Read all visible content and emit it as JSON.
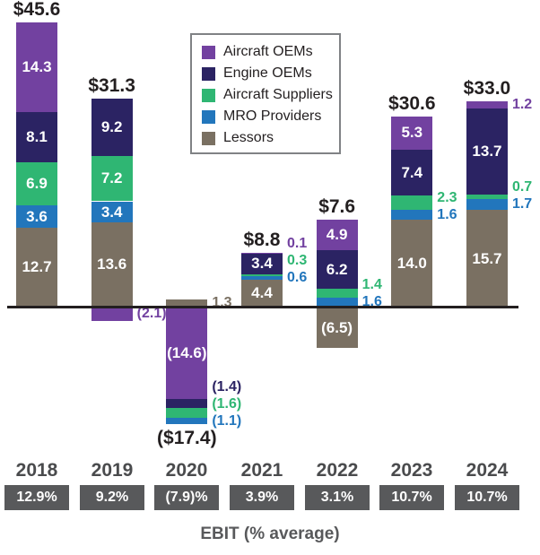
{
  "chart_data": {
    "type": "bar",
    "stacked": true,
    "categories": [
      "2018",
      "2019",
      "2020",
      "2021",
      "2022",
      "2023",
      "2024"
    ],
    "totals": [
      {
        "text": "$45.6",
        "position": "above"
      },
      {
        "text": "$31.3",
        "position": "above"
      },
      {
        "text": "($17.4)",
        "position": "below"
      },
      {
        "text": "$8.8",
        "position": "above"
      },
      {
        "text": "$7.6",
        "position": "above"
      },
      {
        "text": "$30.6",
        "position": "above"
      },
      {
        "text": "$33.0",
        "position": "above"
      }
    ],
    "series": [
      {
        "name": "Aircraft OEMs",
        "color": "#7241a0",
        "values": [
          14.3,
          -2.1,
          -14.6,
          0.1,
          4.9,
          5.3,
          1.2
        ],
        "label_placement": [
          "in",
          "right",
          "in",
          "right",
          "in",
          "in",
          "right"
        ]
      },
      {
        "name": "Engine OEMs",
        "color": "#2b2363",
        "values": [
          8.1,
          9.2,
          -1.4,
          3.4,
          6.2,
          7.4,
          13.7
        ],
        "label_placement": [
          "in",
          "in",
          "right",
          "in",
          "in",
          "in",
          "in"
        ]
      },
      {
        "name": "Aircraft Suppliers",
        "color": "#2fb673",
        "values": [
          6.9,
          7.2,
          -1.6,
          0.3,
          1.4,
          2.3,
          0.7
        ],
        "label_placement": [
          "in",
          "in",
          "right",
          "right",
          "right",
          "right",
          "right"
        ]
      },
      {
        "name": "MRO Providers",
        "color": "#2276bc",
        "values": [
          3.6,
          3.4,
          -1.1,
          0.6,
          1.6,
          1.6,
          1.7
        ],
        "label_placement": [
          "in",
          "in",
          "right",
          "right",
          "right",
          "right",
          "right"
        ]
      },
      {
        "name": "Lessors",
        "color": "#7a7062",
        "values": [
          12.7,
          13.6,
          1.3,
          4.4,
          -6.5,
          14.0,
          15.7
        ],
        "label_placement": [
          "in",
          "in",
          "right",
          "in",
          "in",
          "in",
          "in"
        ]
      }
    ],
    "ebit_values": [
      "12.9%",
      "9.2%",
      "(7.9)%",
      "3.9%",
      "3.1%",
      "10.7%",
      "10.7%"
    ],
    "xlabel": "EBIT (% average)",
    "legend_position": "top-center",
    "axis_color": "#231f20",
    "badge_color": "#58595b",
    "year_label_color": "#4a4b4d",
    "grid": false,
    "y_axis_visible": false
  }
}
